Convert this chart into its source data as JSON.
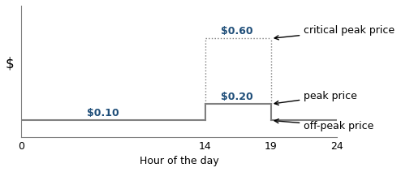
{
  "title": "",
  "xlabel": "Hour of the day",
  "ylabel": "$",
  "xlim": [
    0,
    24
  ],
  "ylim": [
    0,
    0.8
  ],
  "xticks": [
    0,
    14,
    19,
    24
  ],
  "off_peak_price": 0.1,
  "peak_price": 0.2,
  "critical_peak_price": 0.6,
  "off_peak_hours": [
    0,
    14
  ],
  "peak_hours": [
    14,
    19
  ],
  "after_peak_hours": [
    19,
    24
  ],
  "critical_peak_hours": [
    14,
    19
  ],
  "line_color": "#808080",
  "dotted_color": "#808080",
  "text_color": "#1F4E79",
  "label_color": "#000000",
  "label_fontsize": 9,
  "price_fontsize": 9,
  "annotation_fontsize": 9,
  "background_color": "#ffffff"
}
